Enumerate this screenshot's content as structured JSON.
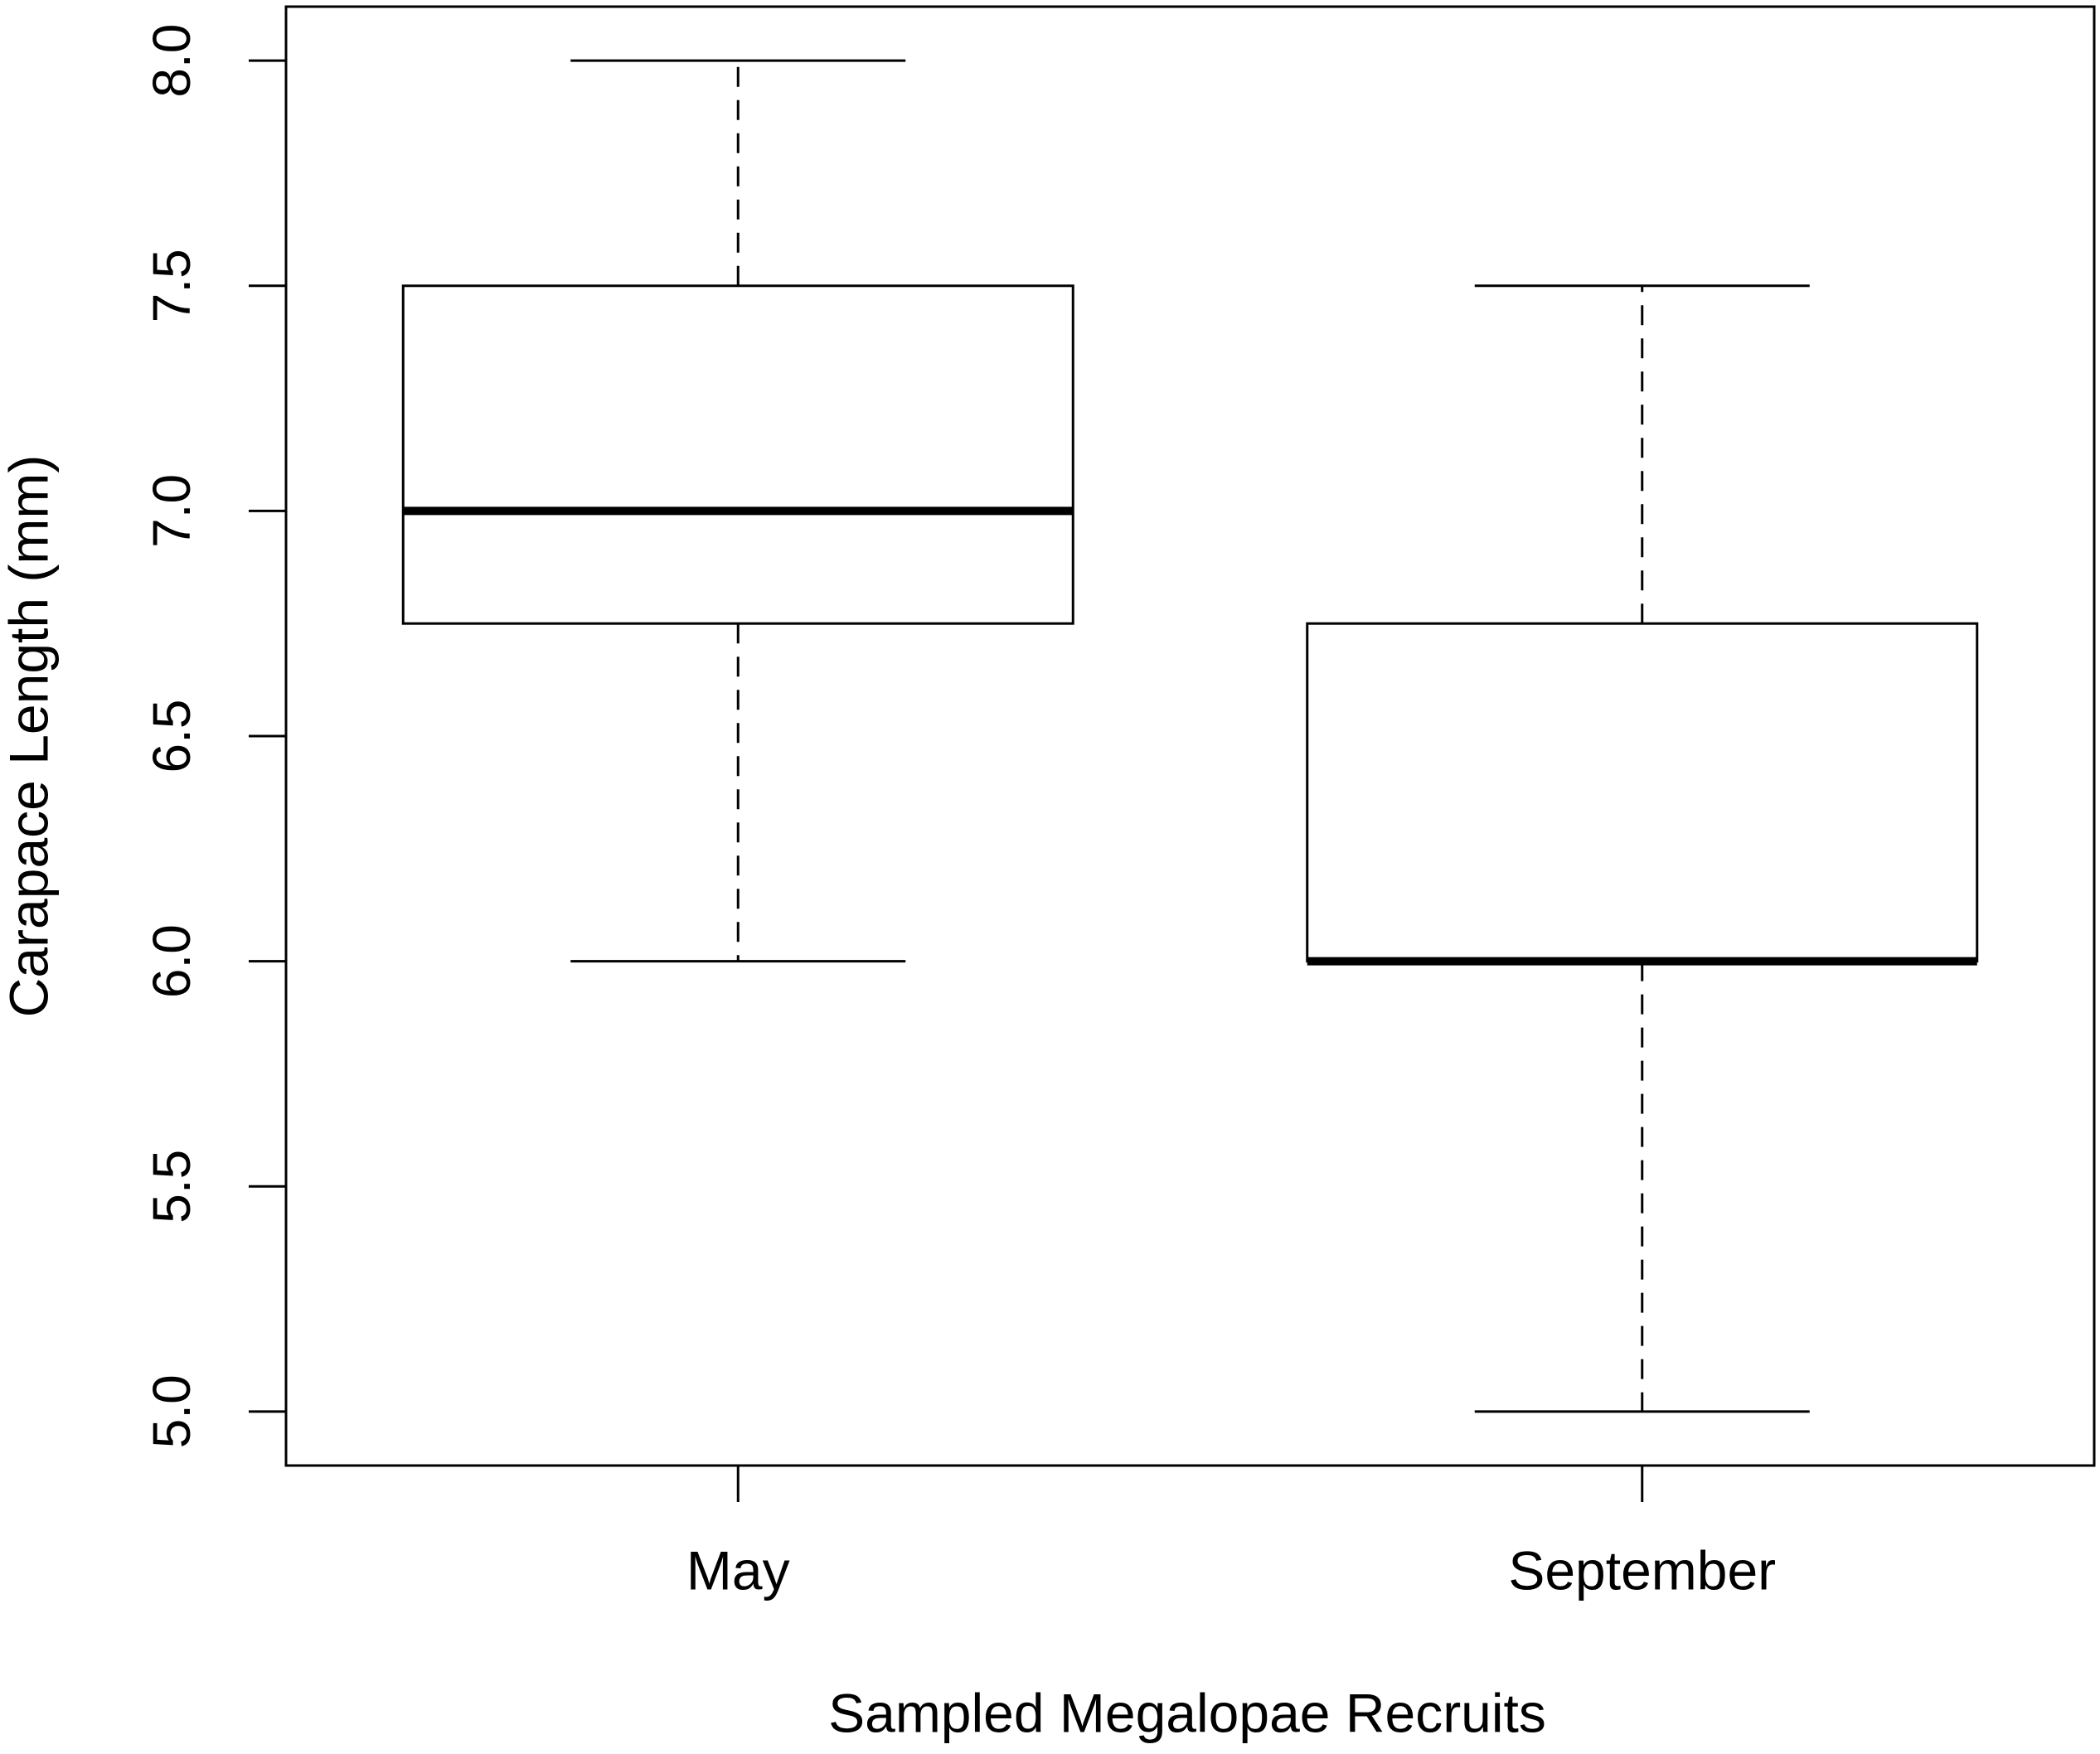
{
  "chart_data": {
    "type": "box",
    "x_label": "Sampled Megalopae Recruits",
    "y_label": "Carapace Length (mm)",
    "categories": [
      "May",
      "September"
    ],
    "min": [
      6.0,
      5.0
    ],
    "q1": [
      6.75,
      6.0
    ],
    "median": [
      7.0,
      6.0
    ],
    "q3": [
      7.5,
      6.75
    ],
    "max": [
      8.0,
      7.5
    ],
    "color": "#000000",
    "ylim": [
      4.88,
      8.12
    ],
    "yticks": [
      {
        "value": 5,
        "label": "5.0"
      },
      5.5,
      {
        "value": 6,
        "label": "6.0"
      },
      6.5,
      {
        "value": 7,
        "label": "7.0"
      },
      7.5,
      {
        "value": 8,
        "label": "8.0"
      }
    ]
  }
}
